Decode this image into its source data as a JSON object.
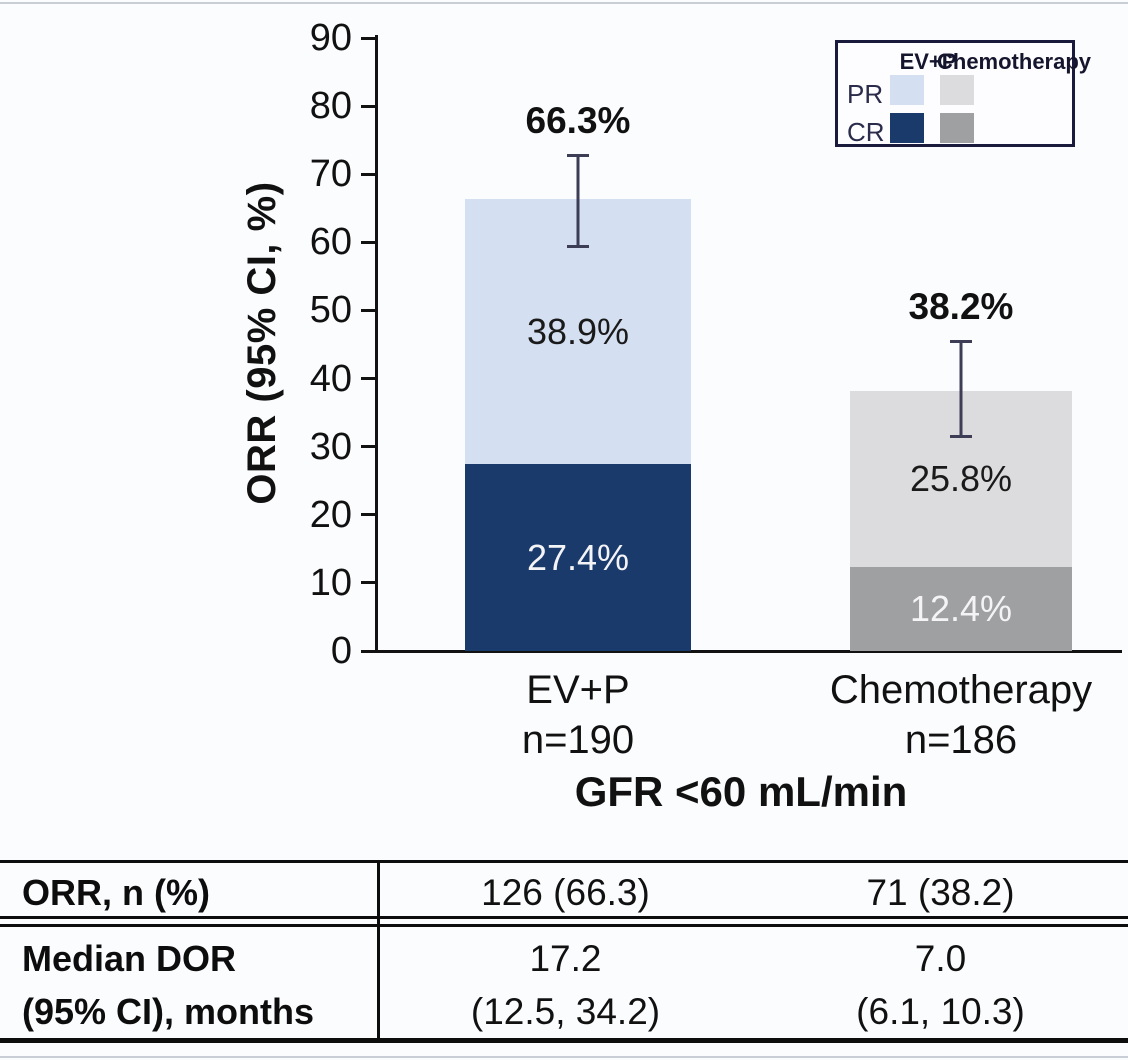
{
  "chart_data": {
    "type": "bar",
    "subtype": "stacked-with-error-bars",
    "categories": [
      "EV+P",
      "Chemotherapy"
    ],
    "category_sublabels": [
      "n=190",
      "n=186"
    ],
    "series": [
      {
        "name": "CR",
        "values": [
          27.4,
          12.4
        ],
        "colors": [
          "#1a3a6b",
          "#9fa0a2"
        ]
      },
      {
        "name": "PR",
        "values": [
          38.9,
          25.8
        ],
        "colors": [
          "#d4e0f1",
          "#dcdcde"
        ]
      }
    ],
    "totals": [
      66.3,
      38.2
    ],
    "error_bars": {
      "low": [
        59.2,
        31.3
      ],
      "high": [
        73.0,
        45.6
      ]
    },
    "value_labels": {
      "totals": [
        "66.3%",
        "38.2%"
      ],
      "pr": [
        "38.9%",
        "25.8%"
      ],
      "cr": [
        "27.4%",
        "12.4%"
      ]
    },
    "title": "",
    "xlabel": "GFR <60 mL/min",
    "ylabel": "ORR (95% CI, %)",
    "ylim": [
      0,
      90
    ],
    "yticks": [
      0,
      10,
      20,
      30,
      40,
      50,
      60,
      70,
      80,
      90
    ],
    "grid": "off",
    "legend_position": "top-right",
    "legend": {
      "headers": [
        "EV+P",
        "Chemotherapy"
      ],
      "rows": [
        "PR",
        "CR"
      ]
    },
    "error_bar_color": "#3d3d55"
  },
  "table": {
    "row1": {
      "label": "ORR, n (%)",
      "evp": "126 (66.3)",
      "chemo": "71 (38.2)"
    },
    "row2": {
      "label_line1": "Median DOR",
      "label_line2": "(95% CI), months",
      "evp_line1": "17.2",
      "evp_line2": "(12.5, 34.2)",
      "chemo_line1": "7.0",
      "chemo_line2": "(6.1, 10.3)"
    }
  }
}
